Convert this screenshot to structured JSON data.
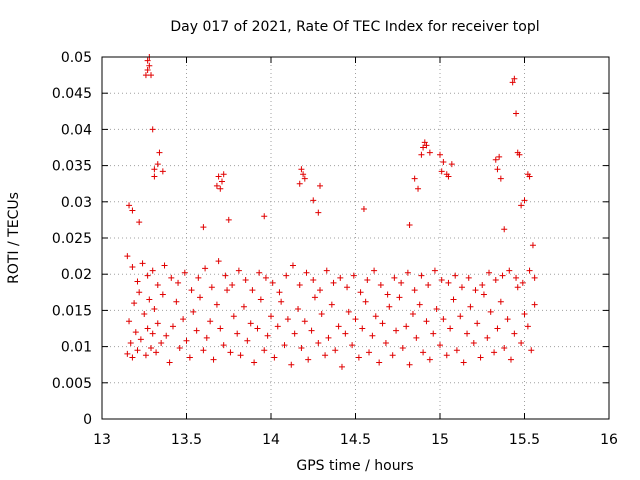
{
  "chart_data": {
    "type": "scatter",
    "title": "Day 017 of 2021, Rate Of TEC Index for receiver topl",
    "xlabel": "GPS time / hours",
    "ylabel": "ROTI / TECUs",
    "xlim": [
      13,
      16
    ],
    "ylim": [
      0,
      0.05
    ],
    "xticks": [
      13,
      13.5,
      14,
      14.5,
      15,
      15.5,
      16
    ],
    "xtick_labels": [
      "13",
      "13.5",
      "14",
      "14.5",
      "15",
      "15.5",
      "16"
    ],
    "yticks": [
      0,
      0.005,
      0.01,
      0.015,
      0.02,
      0.025,
      0.03,
      0.035,
      0.04,
      0.045,
      0.05
    ],
    "ytick_labels": [
      "0",
      "0.005",
      "0.01",
      "0.015",
      "0.02",
      "0.025",
      "0.03",
      "0.035",
      "0.04",
      "0.045",
      "0.05"
    ],
    "grid": true,
    "marker": "+",
    "series_color": "#e00000",
    "series": [
      {
        "x": [
          13.15,
          13.16,
          13.17,
          13.18,
          13.19,
          13.2,
          13.21,
          13.22,
          13.23,
          13.25,
          13.26,
          13.27,
          13.28,
          13.29,
          13.3,
          13.31,
          13.32,
          13.33,
          13.35,
          13.36,
          13.38,
          13.4,
          13.42,
          13.44,
          13.46,
          13.48,
          13.5,
          13.52,
          13.54,
          13.56,
          13.58,
          13.6,
          13.62,
          13.64,
          13.66,
          13.68,
          13.7,
          13.72,
          13.74,
          13.76,
          13.78,
          13.8,
          13.82,
          13.84,
          13.86,
          13.88,
          13.9,
          13.92,
          13.94,
          13.96,
          13.98,
          14.0,
          14.02,
          14.04,
          14.06,
          14.08,
          14.1,
          14.12,
          14.14,
          14.16,
          14.18,
          14.2,
          14.22,
          14.24,
          14.26,
          14.28,
          14.3,
          14.32,
          14.34,
          14.36,
          14.38,
          14.4,
          14.42,
          14.44,
          14.46,
          14.48,
          14.5,
          14.52,
          14.54,
          14.56,
          14.58,
          14.6,
          14.62,
          14.64,
          14.66,
          14.68,
          14.7,
          14.72,
          14.74,
          14.76,
          14.78,
          14.8,
          14.82,
          14.84,
          14.86,
          14.88,
          14.9,
          14.92,
          14.94,
          14.96,
          14.98,
          15.0,
          15.02,
          15.04,
          15.06,
          15.08,
          15.1,
          15.12,
          15.14,
          15.16,
          15.18,
          15.2,
          15.22,
          15.24,
          15.26,
          15.28,
          15.3,
          15.32,
          15.34,
          15.36,
          15.38,
          15.4,
          15.42,
          15.44,
          15.46,
          15.48,
          15.5,
          15.52,
          15.54,
          15.56,
          13.15,
          13.18,
          13.21,
          13.24,
          13.27,
          13.3,
          13.33,
          13.37,
          13.41,
          13.45,
          13.49,
          13.53,
          13.57,
          13.61,
          13.65,
          13.69,
          13.73,
          13.77,
          13.81,
          13.85,
          13.89,
          13.93,
          13.97,
          14.01,
          14.05,
          14.09,
          14.13,
          14.17,
          14.21,
          14.25,
          14.29,
          14.33,
          14.37,
          14.41,
          14.45,
          14.49,
          14.53,
          14.57,
          14.61,
          14.65,
          14.69,
          14.73,
          14.77,
          14.81,
          14.85,
          14.89,
          14.93,
          14.97,
          15.01,
          15.05,
          15.09,
          15.13,
          15.17,
          15.21,
          15.25,
          15.29,
          15.33,
          15.37,
          15.41,
          15.45,
          15.49,
          15.53,
          15.56,
          13.26,
          13.27,
          13.27,
          13.28,
          13.28,
          13.29,
          13.3,
          13.31,
          13.31,
          13.33,
          13.34,
          13.36,
          13.68,
          13.69,
          13.7,
          13.71,
          13.72,
          14.17,
          14.18,
          14.19,
          14.2,
          14.25,
          14.29,
          14.85,
          14.87,
          14.89,
          14.9,
          14.91,
          14.92,
          14.94,
          15.0,
          15.01,
          15.02,
          15.04,
          15.05,
          15.07,
          15.33,
          15.34,
          15.35,
          15.36,
          15.43,
          15.44,
          15.45,
          15.46,
          15.47,
          15.48,
          15.5,
          15.52,
          15.53,
          13.16,
          13.18,
          13.22,
          13.6,
          13.75,
          13.96,
          14.28,
          14.55,
          14.82,
          15.38,
          15.55
        ],
        "y": [
          0.009,
          0.0135,
          0.0105,
          0.0085,
          0.016,
          0.012,
          0.0095,
          0.0175,
          0.011,
          0.0145,
          0.0088,
          0.0125,
          0.0165,
          0.0098,
          0.0118,
          0.0152,
          0.0092,
          0.0132,
          0.0105,
          0.0172,
          0.0115,
          0.0078,
          0.0128,
          0.0162,
          0.0098,
          0.0138,
          0.0108,
          0.0085,
          0.0148,
          0.0122,
          0.0168,
          0.0095,
          0.0112,
          0.0135,
          0.0082,
          0.0158,
          0.0125,
          0.0102,
          0.0178,
          0.0092,
          0.0142,
          0.0118,
          0.0088,
          0.0155,
          0.0108,
          0.0132,
          0.0078,
          0.0125,
          0.0165,
          0.0095,
          0.0115,
          0.0142,
          0.0085,
          0.0128,
          0.0162,
          0.0102,
          0.0138,
          0.0075,
          0.0118,
          0.0152,
          0.0098,
          0.0135,
          0.0082,
          0.0122,
          0.0168,
          0.0105,
          0.0145,
          0.0088,
          0.0112,
          0.0158,
          0.0095,
          0.0128,
          0.0072,
          0.0118,
          0.0148,
          0.0102,
          0.0138,
          0.0085,
          0.0125,
          0.0162,
          0.0092,
          0.0115,
          0.0142,
          0.0078,
          0.0132,
          0.0105,
          0.0155,
          0.0088,
          0.0122,
          0.0168,
          0.0098,
          0.0128,
          0.0075,
          0.0145,
          0.0112,
          0.0158,
          0.0092,
          0.0135,
          0.0082,
          0.0118,
          0.0152,
          0.0102,
          0.0138,
          0.0088,
          0.0125,
          0.0165,
          0.0095,
          0.0142,
          0.0078,
          0.0118,
          0.0155,
          0.0105,
          0.0132,
          0.0085,
          0.0172,
          0.0112,
          0.0148,
          0.0092,
          0.0125,
          0.0162,
          0.0098,
          0.0138,
          0.0082,
          0.0118,
          0.0182,
          0.0105,
          0.0145,
          0.0128,
          0.0095,
          0.0158,
          0.0225,
          0.021,
          0.019,
          0.0215,
          0.0198,
          0.0205,
          0.0185,
          0.0212,
          0.0195,
          0.0188,
          0.0202,
          0.0178,
          0.0195,
          0.0208,
          0.0182,
          0.0218,
          0.0198,
          0.0185,
          0.0205,
          0.0192,
          0.0178,
          0.0202,
          0.0195,
          0.0188,
          0.0175,
          0.0198,
          0.0212,
          0.0185,
          0.0202,
          0.0192,
          0.0178,
          0.0205,
          0.0188,
          0.0195,
          0.0182,
          0.0198,
          0.0175,
          0.0192,
          0.0205,
          0.0185,
          0.0172,
          0.0195,
          0.0188,
          0.0202,
          0.0178,
          0.0198,
          0.0185,
          0.0205,
          0.0192,
          0.0188,
          0.0198,
          0.0182,
          0.0195,
          0.0178,
          0.0185,
          0.0202,
          0.0192,
          0.0198,
          0.0205,
          0.0195,
          0.0188,
          0.0205,
          0.0195,
          0.0475,
          0.0482,
          0.0495,
          0.0488,
          0.05,
          0.0475,
          0.04,
          0.0345,
          0.0335,
          0.0352,
          0.0368,
          0.0342,
          0.0322,
          0.0335,
          0.0318,
          0.0328,
          0.0338,
          0.0325,
          0.0345,
          0.0338,
          0.0332,
          0.0302,
          0.0322,
          0.0332,
          0.0318,
          0.0365,
          0.0375,
          0.0382,
          0.0378,
          0.0368,
          0.0365,
          0.0342,
          0.0355,
          0.0338,
          0.0335,
          0.0352,
          0.0358,
          0.0345,
          0.0362,
          0.0332,
          0.0465,
          0.047,
          0.0422,
          0.0368,
          0.0365,
          0.0295,
          0.0302,
          0.0338,
          0.0335,
          0.0295,
          0.0288,
          0.0272,
          0.0265,
          0.0275,
          0.028,
          0.0285,
          0.029,
          0.0268,
          0.0262,
          0.024
        ]
      }
    ]
  }
}
